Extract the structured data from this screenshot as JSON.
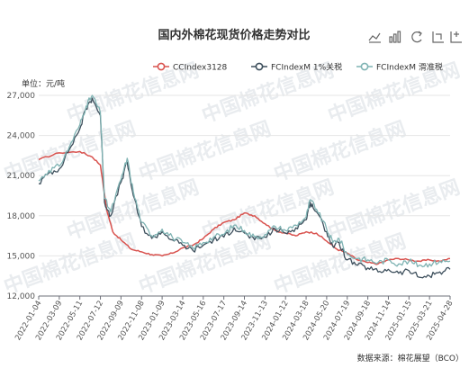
{
  "title": "国内外棉花现货价格走势对比",
  "unit_label": "单位：元/吨",
  "source": "数据来源：棉花展望（BCO）",
  "toolbox": [
    "line-chart-icon",
    "bar-chart-icon",
    "refresh-icon",
    "zoom-icon",
    "zoom-reset-icon"
  ],
  "chart_data": {
    "type": "line",
    "ylim": [
      12000,
      27000
    ],
    "y_ticks": [
      "12,000",
      "15,000",
      "18,000",
      "21,000",
      "24,000",
      "27,000"
    ],
    "y_tick_values": [
      12000,
      15000,
      18000,
      21000,
      24000,
      27000
    ],
    "x_ticks": [
      "2022-01-04",
      "2022-03-09",
      "2022-05-11",
      "2022-07-12",
      "2022-09-09",
      "2022-11-08",
      "2023-01-09",
      "2023-03-14",
      "2023-05-16",
      "2023-07-17",
      "2023-09-14",
      "2023-11-13",
      "2024-01-12",
      "2024-03-18",
      "2024-05-20",
      "2024-07-19",
      "2024-09-18",
      "2024-11-14",
      "2025-01-15",
      "2025-03-21",
      "2025-04-28"
    ],
    "grid": true,
    "legend_position": "top-right",
    "series": [
      {
        "name": "CCIndex3128",
        "color": "#d9534f",
        "points": [
          [
            0,
            22200
          ],
          [
            1,
            22700
          ],
          [
            2,
            22800
          ],
          [
            2.6,
            22400
          ],
          [
            3,
            21800
          ],
          [
            3.3,
            18500
          ],
          [
            3.6,
            16800
          ],
          [
            4,
            16200
          ],
          [
            4.5,
            15500
          ],
          [
            5,
            15300
          ],
          [
            5.5,
            15100
          ],
          [
            6,
            15000
          ],
          [
            6.5,
            15200
          ],
          [
            7,
            15600
          ],
          [
            7.5,
            15800
          ],
          [
            8,
            16300
          ],
          [
            8.5,
            17000
          ],
          [
            9,
            17500
          ],
          [
            9.5,
            17700
          ],
          [
            10,
            18200
          ],
          [
            10.5,
            18000
          ],
          [
            11,
            17400
          ],
          [
            11.5,
            16900
          ],
          [
            12,
            16700
          ],
          [
            12.5,
            16500
          ],
          [
            13,
            16800
          ],
          [
            13.5,
            16700
          ],
          [
            14,
            16100
          ],
          [
            14.5,
            15500
          ],
          [
            15,
            15200
          ],
          [
            15.5,
            14700
          ],
          [
            16,
            14500
          ],
          [
            16.5,
            14400
          ],
          [
            17,
            14700
          ],
          [
            17.5,
            14800
          ],
          [
            18,
            14700
          ],
          [
            18.5,
            14600
          ],
          [
            19,
            14700
          ],
          [
            19.5,
            14600
          ],
          [
            20,
            14800
          ]
        ]
      },
      {
        "name": "FCIndexM 1%关税",
        "color": "#3d4f5c",
        "points": [
          [
            0,
            20400
          ],
          [
            0.5,
            21200
          ],
          [
            1,
            21500
          ],
          [
            1.5,
            23000
          ],
          [
            2,
            24500
          ],
          [
            2.3,
            26000
          ],
          [
            2.6,
            26800
          ],
          [
            3,
            25500
          ],
          [
            3.2,
            19000
          ],
          [
            3.5,
            18000
          ],
          [
            4,
            20500
          ],
          [
            4.3,
            22000
          ],
          [
            4.6,
            19500
          ],
          [
            5,
            17200
          ],
          [
            5.5,
            16300
          ],
          [
            6,
            16800
          ],
          [
            6.5,
            16200
          ],
          [
            7,
            15800
          ],
          [
            7.5,
            15400
          ],
          [
            8,
            15800
          ],
          [
            8.5,
            16200
          ],
          [
            9,
            16400
          ],
          [
            9.5,
            17100
          ],
          [
            10,
            16700
          ],
          [
            10.5,
            16200
          ],
          [
            11,
            16400
          ],
          [
            11.5,
            17000
          ],
          [
            12,
            16700
          ],
          [
            12.5,
            17100
          ],
          [
            13,
            17700
          ],
          [
            13.2,
            19000
          ],
          [
            13.5,
            18300
          ],
          [
            14,
            16800
          ],
          [
            14.3,
            15700
          ],
          [
            14.6,
            16000
          ],
          [
            15,
            14700
          ],
          [
            15.5,
            14300
          ],
          [
            16,
            14100
          ],
          [
            16.5,
            13800
          ],
          [
            17,
            14000
          ],
          [
            17.5,
            13700
          ],
          [
            18,
            13900
          ],
          [
            18.5,
            13400
          ],
          [
            19,
            13500
          ],
          [
            19.5,
            13800
          ],
          [
            20,
            14000
          ]
        ]
      },
      {
        "name": "FCIndexM 滑准税",
        "color": "#7fb3b3",
        "points": [
          [
            0,
            20600
          ],
          [
            0.5,
            21400
          ],
          [
            1,
            21700
          ],
          [
            1.5,
            23200
          ],
          [
            2,
            24800
          ],
          [
            2.3,
            26200
          ],
          [
            2.6,
            27000
          ],
          [
            3,
            25700
          ],
          [
            3.2,
            19300
          ],
          [
            3.5,
            18300
          ],
          [
            4,
            20700
          ],
          [
            4.3,
            22300
          ],
          [
            4.6,
            19800
          ],
          [
            5,
            17500
          ],
          [
            5.5,
            16500
          ],
          [
            6,
            17000
          ],
          [
            6.5,
            16400
          ],
          [
            7,
            16000
          ],
          [
            7.5,
            15600
          ],
          [
            8,
            16000
          ],
          [
            8.5,
            16400
          ],
          [
            9,
            16600
          ],
          [
            9.5,
            17300
          ],
          [
            10,
            16900
          ],
          [
            10.5,
            16400
          ],
          [
            11,
            16600
          ],
          [
            11.5,
            17200
          ],
          [
            12,
            16900
          ],
          [
            12.5,
            17300
          ],
          [
            13,
            17900
          ],
          [
            13.2,
            19200
          ],
          [
            13.5,
            18500
          ],
          [
            14,
            17000
          ],
          [
            14.3,
            16000
          ],
          [
            14.6,
            16300
          ],
          [
            15,
            15100
          ],
          [
            15.5,
            14800
          ],
          [
            16,
            14700
          ],
          [
            16.5,
            14500
          ],
          [
            17,
            14700
          ],
          [
            17.5,
            14400
          ],
          [
            18,
            14600
          ],
          [
            18.5,
            14300
          ],
          [
            19,
            14400
          ],
          [
            19.5,
            14600
          ],
          [
            20,
            14600
          ]
        ]
      }
    ]
  },
  "watermark": "中国棉花信息网"
}
